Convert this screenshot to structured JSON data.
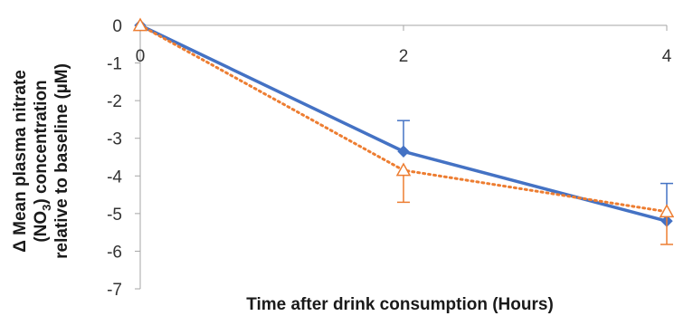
{
  "chart_data": {
    "type": "line",
    "title": "",
    "xlabel": "Time after drink consumption (Hours)",
    "ylabel_lines": [
      "Δ Mean plasma nitrate",
      "concentration",
      "relative to baseline (µM)"
    ],
    "ylabel_subscript": {
      "prefix": "(NO",
      "sub": "3",
      "suffix": ")"
    },
    "x_ticks": [
      "0",
      "2",
      "4"
    ],
    "y_ticks": [
      "0",
      "-1",
      "-2",
      "-3",
      "-4",
      "-5",
      "-6",
      "-7"
    ],
    "xlim": [
      0,
      4
    ],
    "ylim": [
      -7,
      0
    ],
    "grid": false,
    "legend": "none",
    "series": [
      {
        "x": [
          0,
          2,
          4
        ],
        "y": [
          0,
          -3.35,
          -5.2
        ],
        "err": [
          0,
          0.82,
          1.0
        ],
        "err_dir": [
          "up",
          "up",
          "up"
        ],
        "color": "#4472C4",
        "style": "solid",
        "marker": "diamond"
      },
      {
        "x": [
          0,
          2,
          4
        ],
        "y": [
          0,
          -3.85,
          -4.95
        ],
        "err": [
          0,
          0.85,
          0.87
        ],
        "err_dir": [
          "down",
          "down",
          "down"
        ],
        "color": "#ED7D31",
        "style": "dotted",
        "marker": "triangle-open"
      }
    ]
  }
}
